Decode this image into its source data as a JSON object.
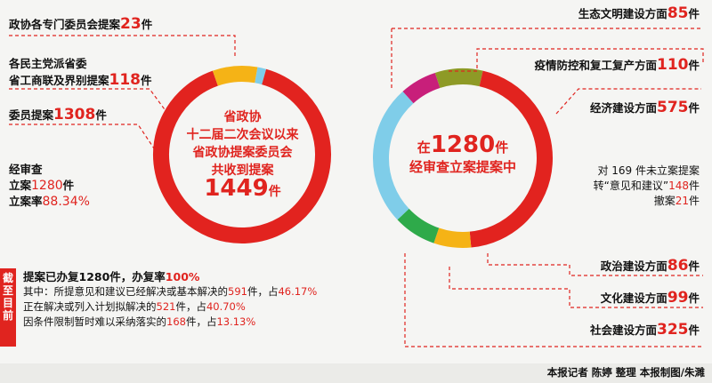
{
  "chart_data": [
    {
      "type": "pie",
      "categories": [
        "政协各专门委员会提案",
        "各民主党派省委省工商联及界别提案",
        "委员提案"
      ],
      "values": [
        23,
        118,
        1308
      ],
      "units": "件",
      "center": {
        "line1": "省政协",
        "line2": "十二届二次会议以来",
        "line3": "省政协提案委员会",
        "line4": "共收到提案",
        "total": "1449",
        "unit": "件"
      },
      "colors": [
        "#7fcde9",
        "#f5b316",
        "#e2231f"
      ]
    },
    {
      "type": "pie",
      "categories": [
        "生态文明建设方面",
        "疫情防控和复工复产方面",
        "经济建设方面",
        "政治建设方面",
        "文化建设方面",
        "社会建设方面"
      ],
      "values": [
        85,
        110,
        575,
        86,
        99,
        325
      ],
      "units": "件",
      "center": {
        "prefix": "在",
        "total": "1280",
        "unit": "件",
        "line2": "经审查立案提案中"
      },
      "colors": [
        "#c81f7a",
        "#8e9a26",
        "#e2231f",
        "#f5b316",
        "#2eaa4a",
        "#7fcde9"
      ]
    }
  ],
  "left_labels": [
    {
      "text": "政协各专门委员会提案",
      "num": "23",
      "unit": "件"
    },
    {
      "text1": "各民主党派省委",
      "text2": "省工商联及界别提案",
      "num": "118",
      "unit": "件"
    },
    {
      "text": "委员提案",
      "num": "1308",
      "unit": "件"
    }
  ],
  "review": {
    "title": "经审查",
    "l1": "立案",
    "v1": "1280",
    "u1": "件",
    "l2": "立案率",
    "v2": "88.34%"
  },
  "right_labels": [
    {
      "text": "生态文明建设方面",
      "num": "85",
      "unit": "件"
    },
    {
      "text": "疫情防控和复工复产方面",
      "num": "110",
      "unit": "件"
    },
    {
      "text": "经济建设方面",
      "num": "575",
      "unit": "件"
    },
    {
      "text": "政治建设方面",
      "num": "86",
      "unit": "件"
    },
    {
      "text": "文化建设方面",
      "num": "99",
      "unit": "件"
    },
    {
      "text": "社会建设方面",
      "num": "325",
      "unit": "件"
    }
  ],
  "unfiled": {
    "l1a": "对 169 件未立案提案",
    "l2a": "转“意见和建议”",
    "v2": "148",
    "u2": "件",
    "l3a": "撤案",
    "v3": "21",
    "u3": "件"
  },
  "side_tag": "截至目前",
  "progress": {
    "title": "提案已办复1280件，办复率",
    "rate": "100%",
    "r1a": "其中：所提意见和建议已经解决或基本解决的",
    "r1v": "591",
    "r1b": "件，占",
    "r1p": "46.17%",
    "r2a": "正在解决或列入计划拟解决的",
    "r2v": "521",
    "r2b": "件，占",
    "r2p": "40.70%",
    "r3a": "因条件限制暂时难以采纳落实的",
    "r3v": "168",
    "r3b": "件，占",
    "r3p": "13.13%"
  },
  "credit": "本报记者  陈婷  整理  本报制图/朱濉"
}
